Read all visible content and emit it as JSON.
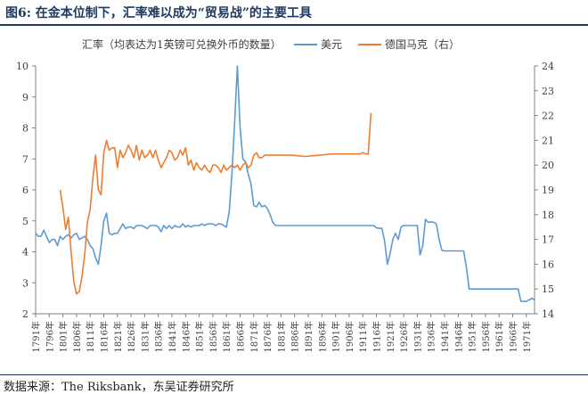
{
  "header": {
    "title": "图6:  在金本位制下，汇率难以成为“贸易战”的主要工具"
  },
  "footer": {
    "source": "数据来源：The Riksbank，东吴证券研究所"
  },
  "chart_data": {
    "type": "line",
    "x_range": [
      1791,
      1974
    ],
    "x_ticks": [
      1791,
      1796,
      1801,
      1806,
      1811,
      1816,
      1821,
      1826,
      1831,
      1836,
      1841,
      1846,
      1851,
      1856,
      1861,
      1866,
      1871,
      1876,
      1881,
      1886,
      1891,
      1896,
      1901,
      1906,
      1911,
      1916,
      1921,
      1926,
      1931,
      1936,
      1941,
      1946,
      1951,
      1956,
      1961,
      1966,
      1971
    ],
    "x_tick_suffix": "年",
    "y_left": {
      "label": "汇率（均表达为1英镑可兑换外币的数量）",
      "range": [
        2,
        10
      ],
      "ticks": [
        2,
        3,
        4,
        5,
        6,
        7,
        8,
        9,
        10
      ]
    },
    "y_right": {
      "label": "",
      "range": [
        14,
        24
      ],
      "ticks": [
        14,
        15,
        16,
        17,
        18,
        19,
        20,
        21,
        22,
        23,
        24
      ]
    },
    "grid": false,
    "legend": {
      "placement": "top",
      "entries": [
        "美元",
        "德国马克（右）"
      ]
    },
    "colors": {
      "usd": "#5b9bd5",
      "dem": "#ed7d31",
      "axis": "#7f7f7f",
      "text": "#404040"
    },
    "series": [
      {
        "name": "美元",
        "axis": "left",
        "x": [
          1791,
          1792,
          1793,
          1794,
          1795,
          1796,
          1797,
          1798,
          1799,
          1800,
          1801,
          1802,
          1803,
          1804,
          1805,
          1806,
          1807,
          1808,
          1809,
          1810,
          1811,
          1812,
          1813,
          1814,
          1815,
          1816,
          1817,
          1818,
          1819,
          1820,
          1821,
          1822,
          1823,
          1824,
          1825,
          1826,
          1827,
          1828,
          1829,
          1830,
          1831,
          1832,
          1833,
          1834,
          1835,
          1836,
          1837,
          1838,
          1839,
          1840,
          1841,
          1842,
          1843,
          1844,
          1845,
          1846,
          1847,
          1848,
          1849,
          1850,
          1851,
          1852,
          1853,
          1854,
          1855,
          1856,
          1857,
          1858,
          1859,
          1860,
          1861,
          1862,
          1863,
          1864,
          1865,
          1866,
          1867,
          1868,
          1869,
          1870,
          1871,
          1872,
          1873,
          1874,
          1875,
          1876,
          1877,
          1878,
          1879,
          1880,
          1885,
          1890,
          1895,
          1900,
          1905,
          1910,
          1914,
          1915,
          1916,
          1917,
          1918,
          1919,
          1920,
          1921,
          1922,
          1923,
          1924,
          1925,
          1926,
          1927,
          1928,
          1929,
          1930,
          1931,
          1932,
          1933,
          1934,
          1935,
          1936,
          1937,
          1938,
          1939,
          1940,
          1941,
          1942,
          1943,
          1944,
          1945,
          1946,
          1947,
          1948,
          1949,
          1950,
          1955,
          1960,
          1965,
          1966,
          1967,
          1968,
          1969,
          1970,
          1971,
          1972,
          1973,
          1974
        ],
        "values": [
          4.6,
          4.5,
          4.5,
          4.7,
          4.5,
          4.3,
          4.4,
          4.4,
          4.2,
          4.5,
          4.4,
          4.5,
          4.55,
          4.45,
          4.55,
          4.6,
          4.4,
          4.45,
          4.5,
          4.4,
          4.2,
          4.1,
          3.8,
          3.6,
          4.2,
          5.0,
          5.25,
          4.6,
          4.55,
          4.6,
          4.6,
          4.75,
          4.9,
          4.75,
          4.8,
          4.8,
          4.75,
          4.85,
          4.85,
          4.85,
          4.8,
          4.75,
          4.85,
          4.85,
          4.85,
          4.8,
          4.65,
          4.85,
          4.75,
          4.85,
          4.75,
          4.85,
          4.8,
          4.8,
          4.9,
          4.8,
          4.85,
          4.8,
          4.85,
          4.85,
          4.85,
          4.9,
          4.85,
          4.9,
          4.9,
          4.9,
          4.85,
          4.9,
          4.9,
          4.85,
          4.8,
          5.3,
          6.5,
          8.2,
          10.0,
          8.0,
          7.0,
          6.9,
          6.5,
          6.2,
          5.5,
          5.45,
          5.6,
          5.45,
          5.5,
          5.4,
          5.2,
          4.95,
          4.85,
          4.85,
          4.85,
          4.85,
          4.85,
          4.85,
          4.85,
          4.85,
          4.85,
          4.85,
          4.77,
          4.76,
          4.76,
          4.35,
          3.6,
          3.93,
          4.4,
          4.6,
          4.4,
          4.8,
          4.85,
          4.85,
          4.85,
          4.85,
          4.85,
          4.85,
          3.9,
          4.2,
          5.05,
          4.95,
          4.97,
          4.95,
          4.9,
          4.4,
          4.05,
          4.03,
          4.03,
          4.03,
          4.03,
          4.03,
          4.03,
          4.03,
          4.03,
          3.5,
          2.8,
          2.8,
          2.8,
          2.8,
          2.8,
          2.8,
          2.8,
          2.4,
          2.4,
          2.4,
          2.45,
          2.5,
          2.45
        ]
      },
      {
        "name": "德国马克（右）",
        "axis": "right",
        "x": [
          1800,
          1801,
          1802,
          1803,
          1804,
          1805,
          1806,
          1807,
          1808,
          1809,
          1810,
          1811,
          1812,
          1813,
          1814,
          1815,
          1816,
          1817,
          1818,
          1819,
          1820,
          1821,
          1822,
          1823,
          1824,
          1825,
          1826,
          1827,
          1828,
          1829,
          1830,
          1831,
          1832,
          1833,
          1834,
          1835,
          1836,
          1837,
          1838,
          1839,
          1840,
          1841,
          1842,
          1843,
          1844,
          1845,
          1846,
          1847,
          1848,
          1849,
          1850,
          1851,
          1852,
          1853,
          1854,
          1855,
          1856,
          1857,
          1858,
          1859,
          1860,
          1861,
          1862,
          1863,
          1864,
          1865,
          1866,
          1867,
          1868,
          1869,
          1870,
          1871,
          1872,
          1873,
          1874,
          1875,
          1880,
          1885,
          1890,
          1895,
          1900,
          1905,
          1910,
          1911,
          1912,
          1913,
          1914
        ],
        "values": [
          19.0,
          18.3,
          17.4,
          17.9,
          16.5,
          15.3,
          14.8,
          14.9,
          15.5,
          16.4,
          17.7,
          18.2,
          19.5,
          20.4,
          19.0,
          18.8,
          20.5,
          21.0,
          20.6,
          20.7,
          20.7,
          19.9,
          20.6,
          20.3,
          20.5,
          20.8,
          20.6,
          20.3,
          20.8,
          20.2,
          20.6,
          20.3,
          20.4,
          20.6,
          20.3,
          20.6,
          20.2,
          19.9,
          20.1,
          20.3,
          20.6,
          20.5,
          20.2,
          20.3,
          20.6,
          20.4,
          20.7,
          20.0,
          20.2,
          19.8,
          20.1,
          19.9,
          19.8,
          20.0,
          19.8,
          19.7,
          20.0,
          20.0,
          19.9,
          19.7,
          20.0,
          19.8,
          19.9,
          20.0,
          19.9,
          20.0,
          19.8,
          20.0,
          20.1,
          19.9,
          20.0,
          20.4,
          20.5,
          20.3,
          20.3,
          20.4,
          20.4,
          20.4,
          20.35,
          20.4,
          20.45,
          20.45,
          20.45,
          20.5,
          20.45,
          20.45,
          22.1
        ]
      }
    ]
  }
}
